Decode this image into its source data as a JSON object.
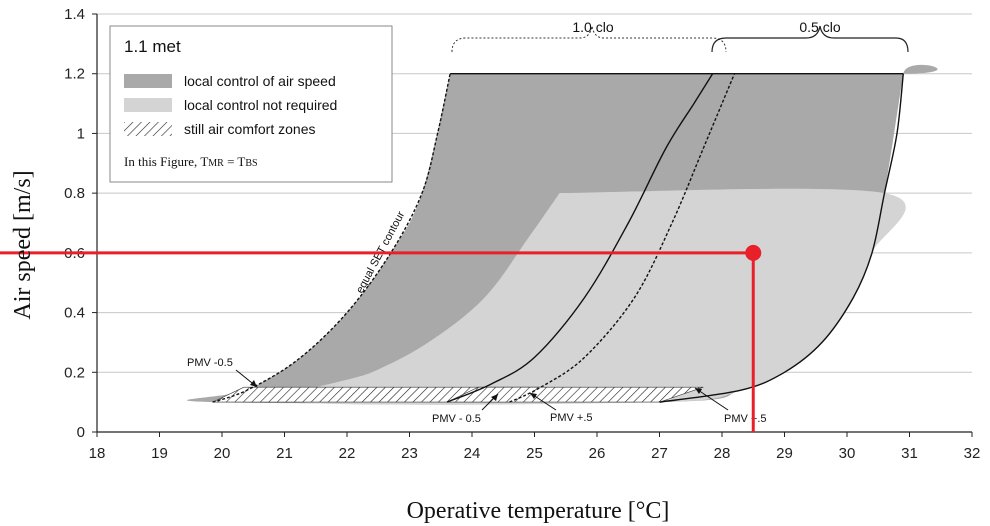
{
  "chart_data": {
    "type": "area",
    "xlabel": "Operative temperature [°C]",
    "ylabel": "Air speed [m/s]",
    "xlim": [
      18,
      32
    ],
    "ylim": [
      0,
      1.4
    ],
    "x_ticks": [
      "18",
      "19",
      "20",
      "21",
      "22",
      "23",
      "24",
      "25",
      "26",
      "27",
      "28",
      "29",
      "30",
      "31",
      "32"
    ],
    "y_ticks": [
      "0",
      "0.2",
      "0.4",
      "0.6",
      "0.8",
      "1",
      "1.2",
      "1.4"
    ],
    "grid": "horizontal",
    "legend": {
      "placement": "top-left",
      "title": "1.1 met",
      "items": [
        {
          "label": "local control of air speed",
          "color": "#a9a9a9"
        },
        {
          "label": "local control not required",
          "color": "#d4d4d4"
        },
        {
          "label": "still air comfort zones",
          "pattern": "hatch"
        }
      ],
      "note_prefix": "In this Figure, T",
      "note_sub1": "MR",
      "note_mid": " = T",
      "note_sub2": "BS"
    },
    "regions": {
      "local_control": {
        "color": "#a9a9a9",
        "outline": [
          [
            23.65,
            1.2
          ],
          [
            30.9,
            1.2
          ],
          [
            30.9,
            1.2
          ],
          [
            30.6,
            0.8
          ],
          [
            30.4,
            0.6
          ],
          [
            30.1,
            0.45
          ],
          [
            29.6,
            0.3
          ],
          [
            29.0,
            0.2
          ],
          [
            28.3,
            0.14
          ],
          [
            27.0,
            0.1
          ],
          [
            19.85,
            0.1
          ],
          [
            20.4,
            0.14
          ],
          [
            21.2,
            0.24
          ],
          [
            22.0,
            0.4
          ],
          [
            22.7,
            0.6
          ],
          [
            23.2,
            0.8
          ],
          [
            23.65,
            1.2
          ]
        ]
      },
      "no_local_control": {
        "color": "#d4d4d4",
        "top_y": 0.8,
        "outline": [
          [
            25.4,
            0.8
          ],
          [
            30.6,
            0.8
          ],
          [
            30.4,
            0.6
          ],
          [
            30.1,
            0.45
          ],
          [
            29.6,
            0.3
          ],
          [
            29.0,
            0.2
          ],
          [
            28.3,
            0.14
          ],
          [
            27.0,
            0.1
          ],
          [
            21.2,
            0.1
          ],
          [
            22.4,
            0.2
          ],
          [
            23.3,
            0.3
          ],
          [
            24.2,
            0.45
          ],
          [
            24.9,
            0.65
          ],
          [
            25.4,
            0.8
          ]
        ]
      },
      "still_air": {
        "pattern": "hatch",
        "y_range": [
          0.1,
          0.15
        ],
        "zones": [
          [
            [
              19.85,
              0.1
            ],
            [
              20.35,
              0.15
            ],
            [
              25.1,
              0.15
            ],
            [
              24.6,
              0.1
            ]
          ],
          [
            [
              23.6,
              0.1
            ],
            [
              24.1,
              0.15
            ],
            [
              27.7,
              0.15
            ],
            [
              27.0,
              0.1
            ]
          ]
        ]
      }
    },
    "series": [
      {
        "label": "PMV -0.5",
        "style": "dotted",
        "points": [
          [
            19.85,
            0.1
          ],
          [
            20.4,
            0.14
          ],
          [
            21.2,
            0.24
          ],
          [
            22.0,
            0.4
          ],
          [
            22.7,
            0.6
          ],
          [
            23.2,
            0.8
          ],
          [
            23.45,
            1.0
          ],
          [
            23.65,
            1.2
          ]
        ]
      },
      {
        "label": "PMV - 0.5",
        "style": "solid",
        "points": [
          [
            23.6,
            0.1
          ],
          [
            24.3,
            0.16
          ],
          [
            25.0,
            0.25
          ],
          [
            25.8,
            0.45
          ],
          [
            26.5,
            0.7
          ],
          [
            27.1,
            0.95
          ],
          [
            27.55,
            1.1
          ],
          [
            27.85,
            1.2
          ]
        ]
      },
      {
        "label": "PMV +.5",
        "style": "dotted",
        "points": [
          [
            24.6,
            0.1
          ],
          [
            25.1,
            0.15
          ],
          [
            25.8,
            0.25
          ],
          [
            26.6,
            0.45
          ],
          [
            27.2,
            0.7
          ],
          [
            27.7,
            0.95
          ],
          [
            28.0,
            1.1
          ],
          [
            28.2,
            1.2
          ]
        ]
      },
      {
        "label": "PMV +.5",
        "style": "solid",
        "points": [
          [
            27.0,
            0.1
          ],
          [
            28.3,
            0.14
          ],
          [
            29.0,
            0.2
          ],
          [
            29.6,
            0.3
          ],
          [
            30.1,
            0.45
          ],
          [
            30.4,
            0.6
          ],
          [
            30.6,
            0.8
          ],
          [
            30.8,
            1.0
          ],
          [
            30.9,
            1.2
          ]
        ]
      }
    ],
    "annotations": {
      "equal_set": "equal SET contour",
      "clo_1": "1.0 clo",
      "clo_05": "0.5 clo",
      "pmv_left": "PMV -0.5",
      "pmv_bottom_left": "PMV - 0.5",
      "pmv_bottom_mid": "PMV +.5",
      "pmv_bottom_right": "PMV +.5"
    },
    "highlight_point": {
      "x": 28.5,
      "y": 0.6,
      "color": "#e8202a"
    }
  }
}
